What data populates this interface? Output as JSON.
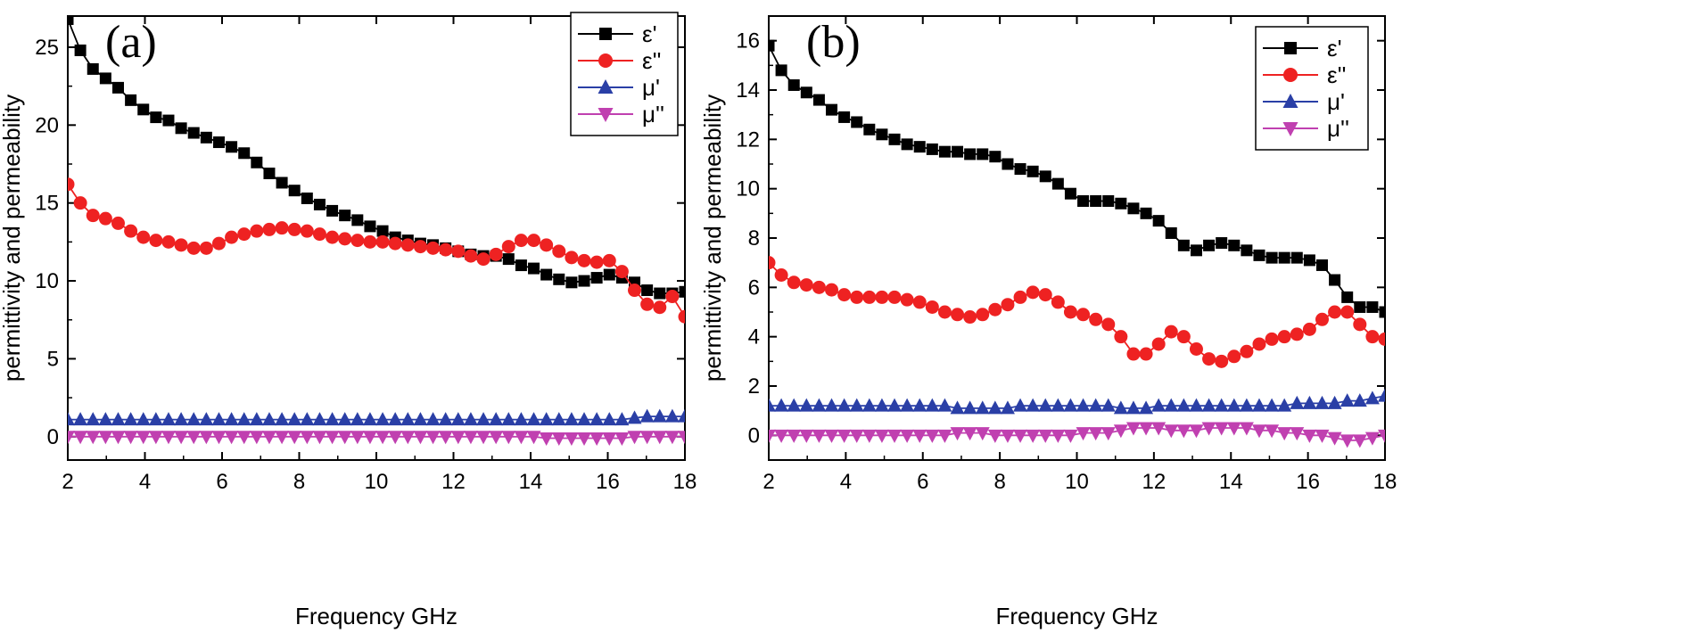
{
  "chart_data": [
    {
      "type": "line",
      "panel_label": "(a)",
      "xlabel": "Frequency GHz",
      "ylabel": "permittivity and permeability",
      "xlim": [
        2,
        18
      ],
      "ylim": [
        -1.5,
        27
      ],
      "xticks": [
        "2",
        "4",
        "6",
        "8",
        "10",
        "12",
        "14",
        "16",
        "18"
      ],
      "yticks": [
        "0",
        "5",
        "10",
        "15",
        "20",
        "25"
      ],
      "legend_position": "top-right",
      "series": [
        {
          "name": "ε'",
          "color": "#000000",
          "marker": "square",
          "values": [
            26.8,
            24.8,
            23.6,
            23.0,
            22.4,
            21.6,
            21.0,
            20.5,
            20.3,
            19.8,
            19.5,
            19.2,
            18.9,
            18.6,
            18.2,
            17.6,
            16.9,
            16.3,
            15.8,
            15.3,
            14.9,
            14.5,
            14.2,
            13.9,
            13.5,
            13.2,
            12.8,
            12.6,
            12.4,
            12.3,
            12.1,
            11.9,
            11.7,
            11.6,
            11.6,
            11.4,
            11.0,
            10.8,
            10.4,
            10.1,
            9.9,
            10.0,
            10.2,
            10.4,
            10.2,
            9.9,
            9.4,
            9.2,
            9.2,
            9.3
          ]
        },
        {
          "name": "ε''",
          "color": "#ee2222",
          "marker": "circle",
          "values": [
            16.2,
            15.0,
            14.2,
            14.0,
            13.7,
            13.2,
            12.8,
            12.6,
            12.5,
            12.3,
            12.1,
            12.1,
            12.4,
            12.8,
            13.0,
            13.2,
            13.3,
            13.4,
            13.3,
            13.2,
            13.0,
            12.8,
            12.7,
            12.6,
            12.5,
            12.5,
            12.4,
            12.3,
            12.2,
            12.1,
            12.0,
            11.9,
            11.6,
            11.4,
            11.7,
            12.2,
            12.6,
            12.6,
            12.3,
            11.9,
            11.5,
            11.3,
            11.2,
            11.3,
            10.6,
            9.4,
            8.5,
            8.3,
            9.0,
            7.7
          ]
        },
        {
          "name": "μ'",
          "color": "#2a3fa6",
          "marker": "triangle-up",
          "values": [
            1.1,
            1.1,
            1.1,
            1.1,
            1.1,
            1.1,
            1.1,
            1.1,
            1.1,
            1.1,
            1.1,
            1.1,
            1.1,
            1.1,
            1.1,
            1.1,
            1.1,
            1.1,
            1.1,
            1.1,
            1.1,
            1.1,
            1.1,
            1.1,
            1.1,
            1.1,
            1.1,
            1.1,
            1.1,
            1.1,
            1.1,
            1.1,
            1.1,
            1.1,
            1.1,
            1.1,
            1.1,
            1.1,
            1.1,
            1.1,
            1.1,
            1.1,
            1.1,
            1.1,
            1.1,
            1.2,
            1.3,
            1.3,
            1.3,
            1.3
          ]
        },
        {
          "name": "μ''",
          "color": "#c040b0",
          "marker": "triangle-down",
          "values": [
            0.0,
            0.0,
            0.0,
            0.0,
            0.0,
            0.0,
            0.0,
            0.0,
            0.0,
            0.0,
            0.0,
            0.0,
            0.0,
            0.0,
            0.0,
            0.0,
            0.0,
            0.0,
            0.0,
            0.0,
            0.0,
            0.0,
            0.0,
            0.0,
            0.0,
            0.0,
            0.0,
            0.0,
            0.0,
            0.0,
            0.0,
            0.0,
            0.0,
            0.0,
            0.0,
            0.0,
            0.0,
            0.0,
            -0.1,
            -0.1,
            -0.1,
            -0.1,
            -0.1,
            -0.1,
            -0.1,
            0.0,
            0.0,
            0.0,
            0.0,
            0.0
          ]
        }
      ]
    },
    {
      "type": "line",
      "panel_label": "(b)",
      "xlabel": "Frequency GHz",
      "ylabel": "permittivity and permeability",
      "xlim": [
        2,
        18
      ],
      "ylim": [
        -1,
        17
      ],
      "xticks": [
        "2",
        "4",
        "6",
        "8",
        "10",
        "12",
        "14",
        "16",
        "18"
      ],
      "yticks": [
        "0",
        "2",
        "4",
        "6",
        "8",
        "10",
        "12",
        "14",
        "16"
      ],
      "legend_position": "top-right",
      "series": [
        {
          "name": "ε'",
          "color": "#000000",
          "marker": "square",
          "values": [
            15.8,
            14.8,
            14.2,
            13.9,
            13.6,
            13.2,
            12.9,
            12.7,
            12.4,
            12.2,
            12.0,
            11.8,
            11.7,
            11.6,
            11.5,
            11.5,
            11.4,
            11.4,
            11.3,
            11.0,
            10.8,
            10.7,
            10.5,
            10.2,
            9.8,
            9.5,
            9.5,
            9.5,
            9.4,
            9.2,
            9.0,
            8.7,
            8.2,
            7.7,
            7.5,
            7.7,
            7.8,
            7.7,
            7.5,
            7.3,
            7.2,
            7.2,
            7.2,
            7.1,
            6.9,
            6.3,
            5.6,
            5.2,
            5.2,
            5.0
          ]
        },
        {
          "name": "ε''",
          "color": "#ee2222",
          "marker": "circle",
          "values": [
            7.0,
            6.5,
            6.2,
            6.1,
            6.0,
            5.9,
            5.7,
            5.6,
            5.6,
            5.6,
            5.6,
            5.5,
            5.4,
            5.2,
            5.0,
            4.9,
            4.8,
            4.9,
            5.1,
            5.3,
            5.6,
            5.8,
            5.7,
            5.4,
            5.0,
            4.9,
            4.7,
            4.5,
            4.0,
            3.3,
            3.3,
            3.7,
            4.2,
            4.0,
            3.5,
            3.1,
            3.0,
            3.2,
            3.4,
            3.7,
            3.9,
            4.0,
            4.1,
            4.3,
            4.7,
            5.0,
            5.0,
            4.5,
            4.0,
            3.9
          ]
        },
        {
          "name": "μ'",
          "color": "#2a3fa6",
          "marker": "triangle-up",
          "values": [
            1.2,
            1.2,
            1.2,
            1.2,
            1.2,
            1.2,
            1.2,
            1.2,
            1.2,
            1.2,
            1.2,
            1.2,
            1.2,
            1.2,
            1.2,
            1.1,
            1.1,
            1.1,
            1.1,
            1.1,
            1.2,
            1.2,
            1.2,
            1.2,
            1.2,
            1.2,
            1.2,
            1.2,
            1.1,
            1.1,
            1.1,
            1.2,
            1.2,
            1.2,
            1.2,
            1.2,
            1.2,
            1.2,
            1.2,
            1.2,
            1.2,
            1.2,
            1.3,
            1.3,
            1.3,
            1.3,
            1.4,
            1.4,
            1.5,
            1.6
          ]
        },
        {
          "name": "μ''",
          "color": "#c040b0",
          "marker": "triangle-down",
          "values": [
            0.0,
            0.0,
            0.0,
            0.0,
            0.0,
            0.0,
            0.0,
            0.0,
            0.0,
            0.0,
            0.0,
            0.0,
            0.0,
            0.0,
            0.0,
            0.1,
            0.1,
            0.1,
            0.0,
            0.0,
            0.0,
            0.0,
            0.0,
            0.0,
            0.0,
            0.1,
            0.1,
            0.1,
            0.2,
            0.3,
            0.3,
            0.3,
            0.2,
            0.2,
            0.2,
            0.3,
            0.3,
            0.3,
            0.3,
            0.2,
            0.2,
            0.1,
            0.1,
            0.0,
            0.0,
            -0.1,
            -0.2,
            -0.2,
            -0.1,
            0.0
          ]
        }
      ]
    }
  ]
}
